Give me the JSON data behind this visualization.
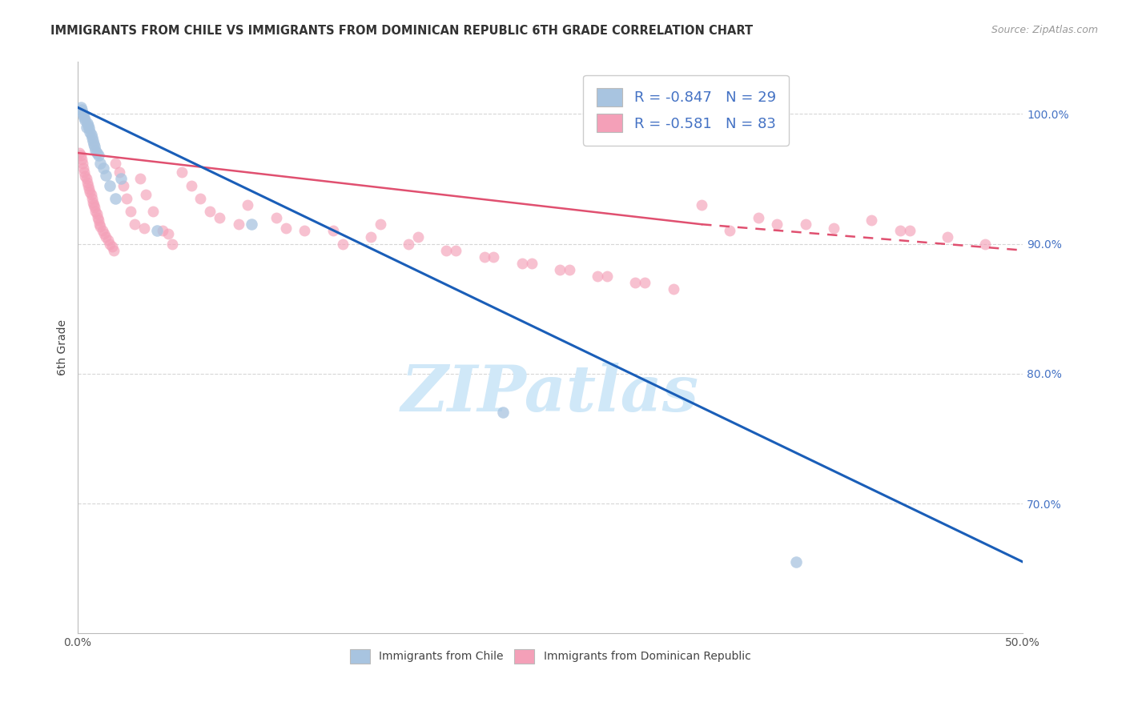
{
  "title": "IMMIGRANTS FROM CHILE VS IMMIGRANTS FROM DOMINICAN REPUBLIC 6TH GRADE CORRELATION CHART",
  "source": "Source: ZipAtlas.com",
  "ylabel": "6th Grade",
  "chile_R": -0.847,
  "chile_N": 29,
  "dr_R": -0.581,
  "dr_N": 83,
  "chile_color": "#a8c4e0",
  "dr_color": "#f4a0b8",
  "chile_line_color": "#1a5eb8",
  "dr_line_color": "#e05070",
  "watermark_color": "#d0e8f8",
  "legend_text_color": "#4472c4",
  "right_tick_color": "#4472c4",
  "grid_color": "#cccccc",
  "xlim": [
    0,
    50
  ],
  "ylim": [
    60,
    104
  ],
  "yticks_right": [
    70,
    80,
    90,
    100
  ],
  "ytick_right_labels": [
    "70.0%",
    "80.0%",
    "90.0%",
    "100.0%"
  ],
  "xtick_labels": [
    "0.0%",
    "",
    "",
    "",
    "",
    "50.0%"
  ],
  "chile_line": [
    0,
    50,
    100.5,
    65.5
  ],
  "dr_line_solid": [
    0,
    33,
    97.0,
    91.5
  ],
  "dr_line_dash": [
    33,
    50,
    91.5,
    89.5
  ],
  "chile_x": [
    0.15,
    0.2,
    0.25,
    0.3,
    0.35,
    0.4,
    0.5,
    0.55,
    0.6,
    0.65,
    0.7,
    0.75,
    0.8,
    0.85,
    0.9,
    0.95,
    1.0,
    1.1,
    1.2,
    1.35,
    1.5,
    1.7,
    2.0,
    2.3,
    4.2,
    9.2,
    22.5,
    38.0,
    0.45
  ],
  "chile_y": [
    100.5,
    100.3,
    100.1,
    99.9,
    99.7,
    99.5,
    99.3,
    99.1,
    98.9,
    98.6,
    98.4,
    98.2,
    97.9,
    97.7,
    97.5,
    97.2,
    97.0,
    96.8,
    96.2,
    95.8,
    95.3,
    94.5,
    93.5,
    95.0,
    91.0,
    91.5,
    77.0,
    65.5,
    99.0
  ],
  "dr_x": [
    0.1,
    0.15,
    0.2,
    0.25,
    0.3,
    0.35,
    0.4,
    0.45,
    0.5,
    0.55,
    0.6,
    0.65,
    0.7,
    0.75,
    0.8,
    0.85,
    0.9,
    0.95,
    1.0,
    1.05,
    1.1,
    1.15,
    1.2,
    1.3,
    1.4,
    1.5,
    1.6,
    1.7,
    1.8,
    1.9,
    2.0,
    2.2,
    2.4,
    2.6,
    2.8,
    3.0,
    3.3,
    3.6,
    4.0,
    4.5,
    5.0,
    5.5,
    6.0,
    6.5,
    7.5,
    9.0,
    10.5,
    12.0,
    14.0,
    16.0,
    18.0,
    20.0,
    22.0,
    24.0,
    26.0,
    28.0,
    30.0,
    33.0,
    36.0,
    38.5,
    42.0,
    44.0,
    46.0,
    48.0,
    3.5,
    4.8,
    7.0,
    8.5,
    11.0,
    13.5,
    15.5,
    17.5,
    19.5,
    21.5,
    23.5,
    25.5,
    27.5,
    29.5,
    31.5,
    34.5,
    37.0,
    40.0,
    43.5
  ],
  "dr_y": [
    97.0,
    96.8,
    96.5,
    96.2,
    95.8,
    95.5,
    95.2,
    95.0,
    94.7,
    94.5,
    94.2,
    94.0,
    93.8,
    93.5,
    93.2,
    93.0,
    92.8,
    92.5,
    92.3,
    92.0,
    91.8,
    91.5,
    91.3,
    91.0,
    90.8,
    90.5,
    90.3,
    90.0,
    89.8,
    89.5,
    96.2,
    95.5,
    94.5,
    93.5,
    92.5,
    91.5,
    95.0,
    93.8,
    92.5,
    91.0,
    90.0,
    95.5,
    94.5,
    93.5,
    92.0,
    93.0,
    92.0,
    91.0,
    90.0,
    91.5,
    90.5,
    89.5,
    89.0,
    88.5,
    88.0,
    87.5,
    87.0,
    93.0,
    92.0,
    91.5,
    91.8,
    91.0,
    90.5,
    90.0,
    91.2,
    90.8,
    92.5,
    91.5,
    91.2,
    91.0,
    90.5,
    90.0,
    89.5,
    89.0,
    88.5,
    88.0,
    87.5,
    87.0,
    86.5,
    91.0,
    91.5,
    91.2,
    91.0
  ]
}
